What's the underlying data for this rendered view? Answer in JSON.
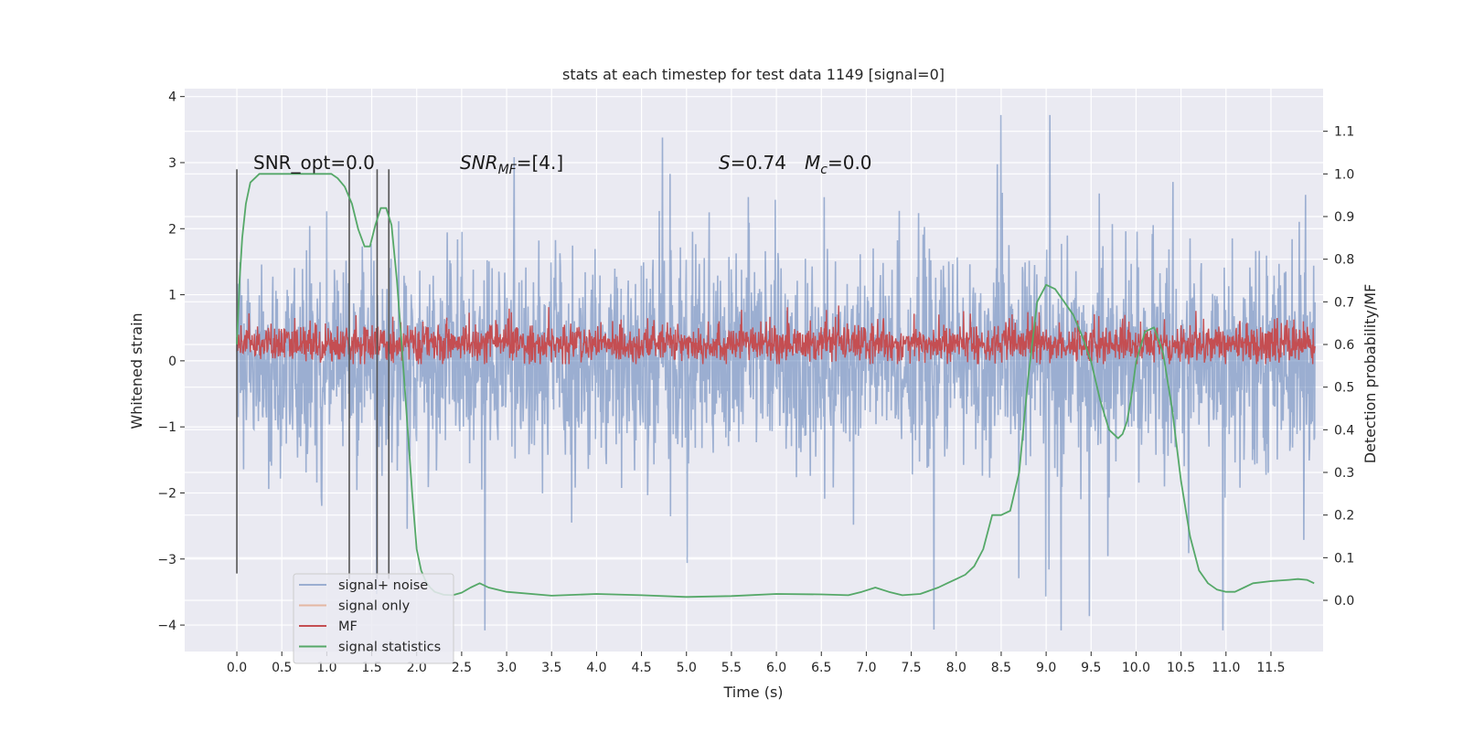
{
  "chart_data": {
    "type": "line",
    "title": "stats at each timestep for test data 1149 [signal=0]",
    "xlabel": "Time (s)",
    "ylabel": "Whitened strain",
    "y2label": "Detection probability/MF",
    "xlim": [
      -0.58,
      12.08
    ],
    "ylim": [
      -4.4,
      4.12
    ],
    "y2lim": [
      -0.12,
      1.2
    ],
    "xticks": [
      0.0,
      0.5,
      1.0,
      1.5,
      2.0,
      2.5,
      3.0,
      3.5,
      4.0,
      4.5,
      5.0,
      5.5,
      6.0,
      6.5,
      7.0,
      7.5,
      8.0,
      8.5,
      9.0,
      9.5,
      10.0,
      10.5,
      11.0,
      11.5
    ],
    "xtick_labels": [
      "0.0",
      "0.5",
      "1.0",
      "1.5",
      "2.0",
      "2.5",
      "3.0",
      "3.5",
      "4.0",
      "4.5",
      "5.0",
      "5.5",
      "6.0",
      "6.5",
      "7.0",
      "7.5",
      "8.0",
      "8.5",
      "9.0",
      "9.5",
      "10.0",
      "10.5",
      "11.0",
      "11.5"
    ],
    "yticks": [
      -4,
      -3,
      -2,
      -1,
      0,
      1,
      2,
      3,
      4
    ],
    "ytick_labels": [
      "−4",
      "−3",
      "−2",
      "−1",
      "0",
      "1",
      "2",
      "3",
      "4"
    ],
    "y2ticks": [
      0.0,
      0.1,
      0.2,
      0.3,
      0.4,
      0.5,
      0.6,
      0.7,
      0.8,
      0.9,
      1.0,
      1.1
    ],
    "y2tick_labels": [
      "0.0",
      "0.1",
      "0.2",
      "0.3",
      "0.4",
      "0.5",
      "0.6",
      "0.7",
      "0.8",
      "0.9",
      "1.0",
      "1.1"
    ],
    "grid": true,
    "legend_position": "lower-left",
    "legend": [
      {
        "name": "signal+ noise",
        "color": "#4c72b0",
        "opacity": 0.5
      },
      {
        "name": "signal only",
        "color": "#dd8452",
        "opacity": 0.5
      },
      {
        "name": "MF",
        "color": "#c44e52",
        "opacity": 1
      },
      {
        "name": "signal statistics",
        "color": "#55a868",
        "opacity": 1
      }
    ],
    "annotations": {
      "snr_opt": "SNR_opt=0.0",
      "snr_mf_base": "SNR",
      "snr_mf_sub": "MF",
      "snr_mf_value": "=[4.]",
      "s_symbol": "S",
      "s_value": "=0.74",
      "mc_symbol": "M",
      "mc_sub": "c",
      "mc_value": "=0.0"
    },
    "vertical_markers": [
      {
        "x": 0.0,
        "ymin": -3.22,
        "ymax": 2.9
      },
      {
        "x": 1.25,
        "ymin": -3.3,
        "ymax": 2.9
      },
      {
        "x": 1.56,
        "ymin": -3.3,
        "ymax": 2.9
      },
      {
        "x": 1.69,
        "ymin": -3.3,
        "ymax": 2.9
      }
    ],
    "signal_noise": {
      "t_start": 0.0,
      "t_end": 11.99,
      "samples": 2400,
      "typical_range": [
        -1.6,
        1.6
      ],
      "max_value": 3.72,
      "min_value": -4.08
    },
    "mf": {
      "t_start": 0.0,
      "t_end": 11.99,
      "samples": 2400,
      "baseline": 0.25,
      "typical_range": [
        0.0,
        0.6
      ],
      "max_value": 0.98
    },
    "signal_statistics": {
      "x": [
        0.0,
        0.03,
        0.06,
        0.1,
        0.15,
        0.25,
        0.4,
        0.6,
        0.8,
        0.95,
        1.05,
        1.12,
        1.2,
        1.28,
        1.35,
        1.42,
        1.48,
        1.54,
        1.6,
        1.66,
        1.72,
        1.78,
        1.84,
        1.9,
        1.95,
        2.0,
        2.05,
        2.1,
        2.15,
        2.2,
        2.3,
        2.4,
        2.5,
        2.6,
        2.7,
        2.8,
        3.0,
        3.5,
        4.0,
        4.5,
        5.0,
        5.5,
        6.0,
        6.5,
        6.8,
        6.95,
        7.1,
        7.25,
        7.4,
        7.6,
        7.8,
        7.9,
        8.0,
        8.1,
        8.2,
        8.3,
        8.4,
        8.5,
        8.6,
        8.7,
        8.8,
        8.9,
        9.0,
        9.1,
        9.2,
        9.3,
        9.4,
        9.5,
        9.6,
        9.7,
        9.8,
        9.85,
        9.9,
        9.95,
        10.0,
        10.1,
        10.2,
        10.3,
        10.4,
        10.5,
        10.6,
        10.7,
        10.8,
        10.9,
        11.0,
        11.1,
        11.2,
        11.3,
        11.5,
        11.7,
        11.8,
        11.9,
        11.98
      ],
      "y": [
        0.6,
        0.75,
        0.85,
        0.93,
        0.98,
        1.0,
        1.0,
        1.0,
        1.0,
        1.0,
        1.0,
        0.99,
        0.97,
        0.93,
        0.87,
        0.83,
        0.83,
        0.88,
        0.92,
        0.92,
        0.88,
        0.75,
        0.58,
        0.4,
        0.25,
        0.12,
        0.07,
        0.045,
        0.03,
        0.02,
        0.013,
        0.012,
        0.018,
        0.03,
        0.04,
        0.03,
        0.02,
        0.011,
        0.015,
        0.012,
        0.008,
        0.01,
        0.015,
        0.014,
        0.012,
        0.02,
        0.03,
        0.02,
        0.012,
        0.015,
        0.03,
        0.04,
        0.05,
        0.06,
        0.08,
        0.12,
        0.2,
        0.2,
        0.21,
        0.3,
        0.52,
        0.7,
        0.74,
        0.73,
        0.7,
        0.67,
        0.62,
        0.56,
        0.47,
        0.4,
        0.38,
        0.39,
        0.42,
        0.48,
        0.56,
        0.63,
        0.64,
        0.58,
        0.45,
        0.28,
        0.15,
        0.07,
        0.04,
        0.025,
        0.02,
        0.02,
        0.03,
        0.04,
        0.045,
        0.048,
        0.05,
        0.048,
        0.04
      ]
    }
  }
}
